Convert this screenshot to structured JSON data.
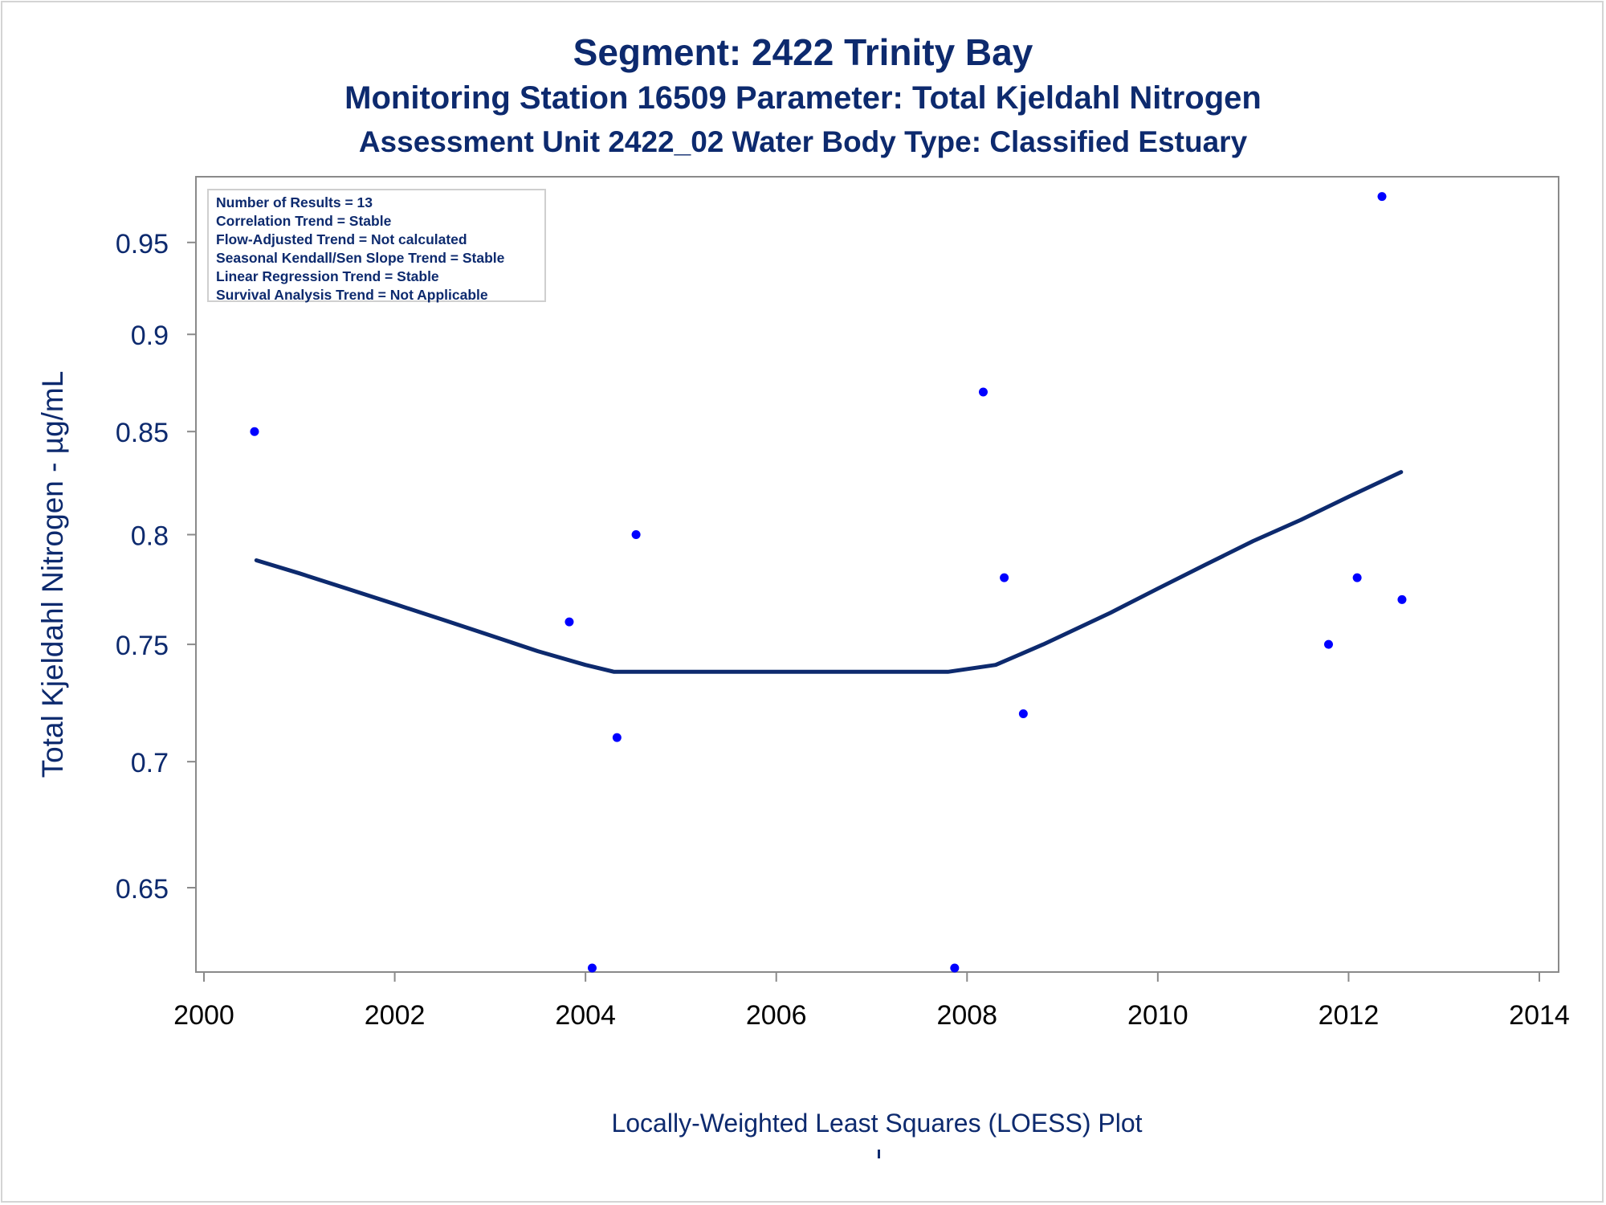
{
  "titles": {
    "line1": "Segment: 2422  Trinity Bay",
    "line2": "Monitoring Station 16509 Parameter: Total Kjeldahl Nitrogen",
    "line3": "Assessment Unit 2422_02   Water Body Type: Classified Estuary"
  },
  "stats": [
    "Number of Results = 13",
    "Correlation Trend = Stable",
    "Flow-Adjusted Trend = Not calculated",
    "Seasonal Kendall/Sen Slope Trend = Stable",
    "Linear Regression Trend = Stable",
    "Survival Analysis Trend = Not Applicable"
  ],
  "footnote": "Locally-Weighted Least Squares (LOESS) Plot",
  "colors": {
    "title_text": "#0d2a6e",
    "points": "#0000ff",
    "loess_line": "#0d2a6e",
    "axis": "#8a8a8a"
  },
  "chart_data": {
    "type": "scatter",
    "title": "Segment: 2422  Trinity Bay",
    "xlabel": "",
    "ylabel": "Total Kjeldahl Nitrogen -  µg/mL",
    "y_scale": "log",
    "xlim": [
      2000,
      2014
    ],
    "ylim": [
      0.62,
      0.98
    ],
    "x_ticks": [
      2000,
      2002,
      2004,
      2006,
      2008,
      2010,
      2012,
      2014
    ],
    "y_ticks": [
      0.65,
      0.7,
      0.75,
      0.8,
      0.85,
      0.9,
      0.95
    ],
    "y_tick_labels": [
      "0.65",
      "0.7",
      "0.75",
      "0.8",
      "0.85",
      "0.9",
      "0.95"
    ],
    "grid": false,
    "series": [
      {
        "type": "scatter",
        "points": [
          [
            2000.53,
            0.85
          ],
          [
            2003.83,
            0.76
          ],
          [
            2004.07,
            0.62
          ],
          [
            2004.33,
            0.71
          ],
          [
            2004.53,
            0.8
          ],
          [
            2007.87,
            0.62
          ],
          [
            2008.17,
            0.87
          ],
          [
            2008.39,
            0.78
          ],
          [
            2008.59,
            0.72
          ],
          [
            2011.79,
            0.75
          ],
          [
            2012.09,
            0.78
          ],
          [
            2012.35,
            0.976
          ],
          [
            2012.56,
            0.77
          ]
        ]
      },
      {
        "type": "line",
        "points": [
          [
            2000.55,
            0.788
          ],
          [
            2001.0,
            0.782
          ],
          [
            2001.5,
            0.775
          ],
          [
            2002.0,
            0.768
          ],
          [
            2002.5,
            0.761
          ],
          [
            2003.0,
            0.754
          ],
          [
            2003.5,
            0.747
          ],
          [
            2004.0,
            0.741
          ],
          [
            2004.3,
            0.738
          ],
          [
            2005.0,
            0.738
          ],
          [
            2006.0,
            0.738
          ],
          [
            2007.0,
            0.738
          ],
          [
            2007.8,
            0.738
          ],
          [
            2008.3,
            0.741
          ],
          [
            2008.8,
            0.75
          ],
          [
            2009.5,
            0.764
          ],
          [
            2010.0,
            0.775
          ],
          [
            2010.5,
            0.786
          ],
          [
            2011.0,
            0.797
          ],
          [
            2011.5,
            0.807
          ],
          [
            2012.0,
            0.818
          ],
          [
            2012.55,
            0.83
          ]
        ]
      }
    ]
  }
}
